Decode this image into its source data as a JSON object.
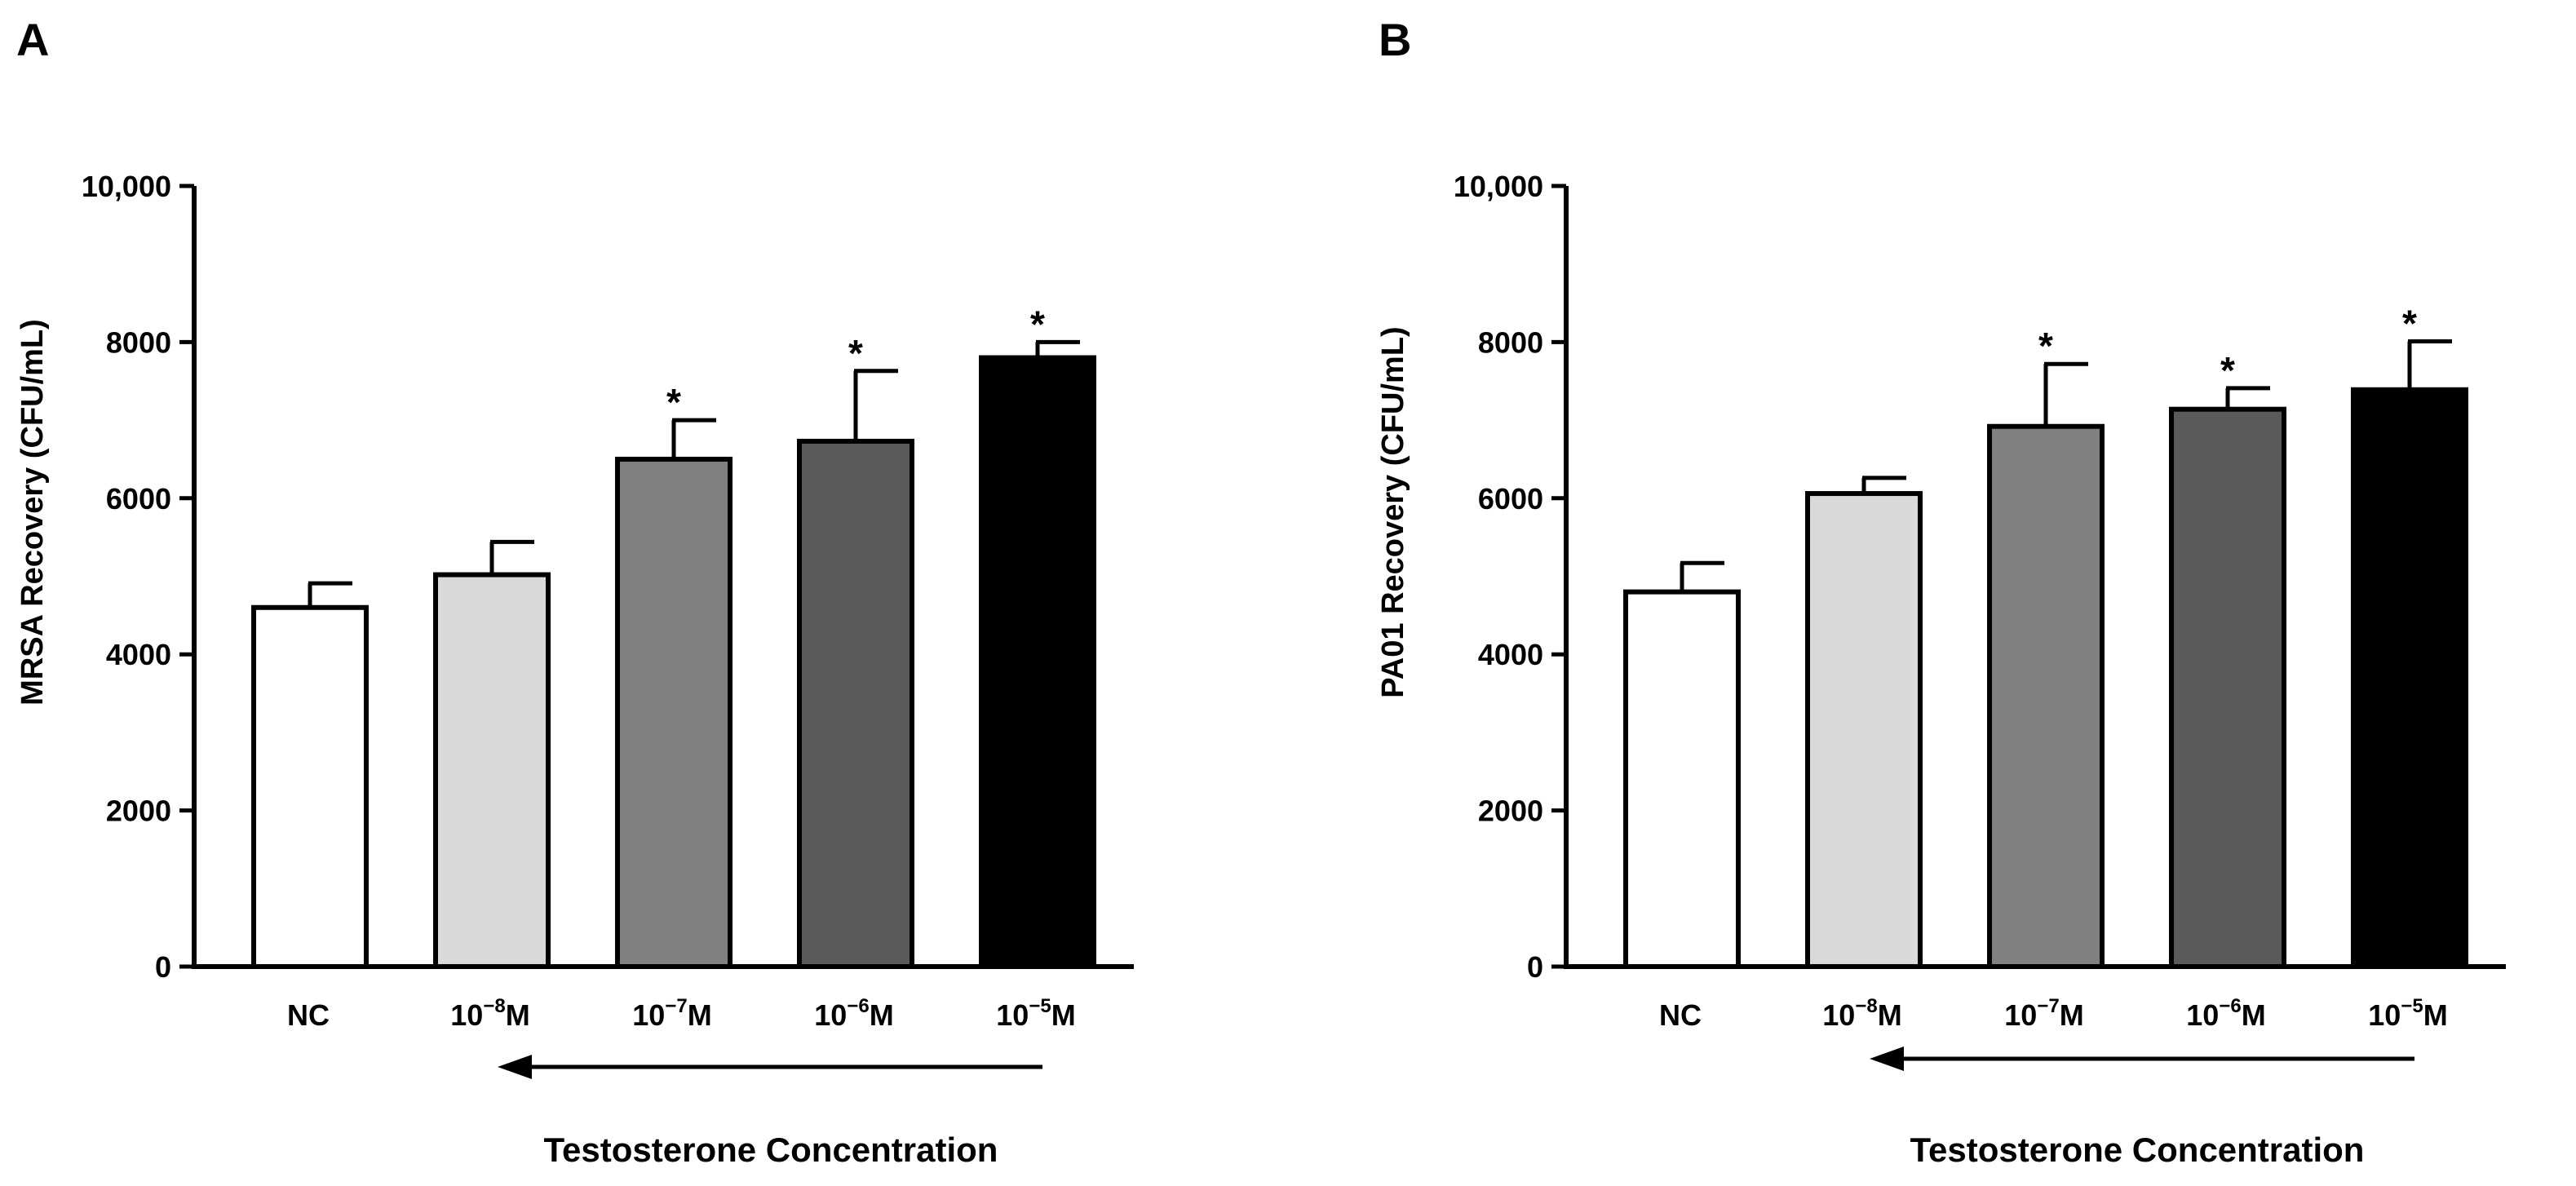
{
  "chart_data": [
    {
      "type": "bar",
      "panel": "A",
      "title": "",
      "ylabel": "MRSA Recovery (CFU/mL)",
      "xlabel": "Testosterone Concentration",
      "arrow_direction": "left",
      "ylim": [
        0,
        10000
      ],
      "yticks": [
        0,
        2000,
        4000,
        6000,
        8000,
        10000
      ],
      "ytick_labels": [
        "0",
        "2000",
        "4000",
        "6000",
        "8000",
        "10,000"
      ],
      "categories": [
        {
          "base": "NC",
          "exp": "",
          "unit": ""
        },
        {
          "base": "10",
          "exp": "−8",
          "unit": "M"
        },
        {
          "base": "10",
          "exp": "−7",
          "unit": "M"
        },
        {
          "base": "10",
          "exp": "−6",
          "unit": "M"
        },
        {
          "base": "10",
          "exp": "−5",
          "unit": "M"
        }
      ],
      "values": [
        4600,
        5020,
        6500,
        6730,
        7800
      ],
      "errors": [
        310,
        420,
        500,
        900,
        200
      ],
      "significance": [
        "",
        "",
        "*",
        "*",
        "*"
      ],
      "colors": [
        "#ffffff",
        "#d9d9d9",
        "#808080",
        "#5a5a5a",
        "#000000"
      ]
    },
    {
      "type": "bar",
      "panel": "B",
      "title": "",
      "ylabel": "PA01 Recovery (CFU/mL)",
      "xlabel": "Testosterone Concentration",
      "arrow_direction": "left",
      "ylim": [
        0,
        10000
      ],
      "yticks": [
        0,
        2000,
        4000,
        6000,
        8000,
        10000
      ],
      "ytick_labels": [
        "0",
        "2000",
        "4000",
        "6000",
        "8000",
        "10,000"
      ],
      "categories": [
        {
          "base": "NC",
          "exp": "",
          "unit": ""
        },
        {
          "base": "10",
          "exp": "−8",
          "unit": "M"
        },
        {
          "base": "10",
          "exp": "−7",
          "unit": "M"
        },
        {
          "base": "10",
          "exp": "−6",
          "unit": "M"
        },
        {
          "base": "10",
          "exp": "−5",
          "unit": "M"
        }
      ],
      "values": [
        4800,
        6060,
        6920,
        7140,
        7390
      ],
      "errors": [
        370,
        200,
        800,
        270,
        620
      ],
      "significance": [
        "",
        "",
        "*",
        "*",
        "*"
      ],
      "colors": [
        "#ffffff",
        "#d9d9d9",
        "#808080",
        "#5a5a5a",
        "#000000"
      ]
    }
  ]
}
